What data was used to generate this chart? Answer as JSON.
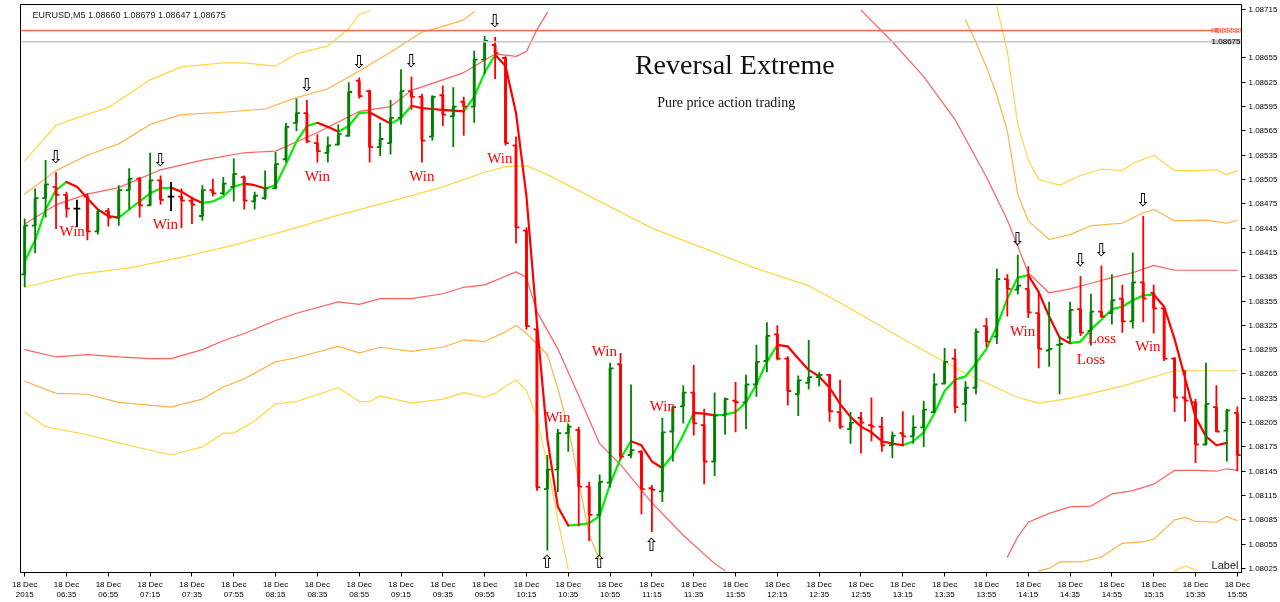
{
  "chart_data": {
    "type": "candlestick",
    "title": "Reversal Extreme",
    "subtitle": "Pure price action trading",
    "x": [
      "2015-12-18T06:15",
      "2015-12-18T06:20",
      "2015-12-18T06:25",
      "2015-12-18T06:30",
      "2015-12-18T06:35",
      "2015-12-18T06:40",
      "2015-12-18T06:45",
      "2015-12-18T06:50",
      "2015-12-18T06:55",
      "2015-12-18T07:00",
      "2015-12-18T07:05",
      "2015-12-18T07:10",
      "2015-12-18T07:15",
      "2015-12-18T07:20",
      "2015-12-18T07:25",
      "2015-12-18T07:30",
      "2015-12-18T07:35",
      "2015-12-18T07:40",
      "2015-12-18T07:45",
      "2015-12-18T07:50",
      "2015-12-18T07:55",
      "2015-12-18T08:00",
      "2015-12-18T08:05",
      "2015-12-18T08:10",
      "2015-12-18T08:15",
      "2015-12-18T08:20",
      "2015-12-18T08:25",
      "2015-12-18T08:30",
      "2015-12-18T08:35",
      "2015-12-18T08:40",
      "2015-12-18T08:45",
      "2015-12-18T08:50",
      "2015-12-18T08:55",
      "2015-12-18T09:00",
      "2015-12-18T09:05",
      "2015-12-18T09:10",
      "2015-12-18T09:15",
      "2015-12-18T09:20",
      "2015-12-18T09:25",
      "2015-12-18T09:30",
      "2015-12-18T09:35",
      "2015-12-18T09:40",
      "2015-12-18T09:45",
      "2015-12-18T09:50",
      "2015-12-18T09:55",
      "2015-12-18T10:00",
      "2015-12-18T10:05",
      "2015-12-18T10:10",
      "2015-12-18T10:15",
      "2015-12-18T10:20",
      "2015-12-18T10:25",
      "2015-12-18T10:30",
      "2015-12-18T10:35",
      "2015-12-18T10:40",
      "2015-12-18T10:45",
      "2015-12-18T10:50",
      "2015-12-18T10:55",
      "2015-12-18T11:00",
      "2015-12-18T11:05",
      "2015-12-18T11:10",
      "2015-12-18T11:15",
      "2015-12-18T11:20",
      "2015-12-18T11:25",
      "2015-12-18T11:30",
      "2015-12-18T11:35",
      "2015-12-18T11:40",
      "2015-12-18T11:45",
      "2015-12-18T11:50",
      "2015-12-18T11:55",
      "2015-12-18T12:00",
      "2015-12-18T12:05",
      "2015-12-18T12:10",
      "2015-12-18T12:15",
      "2015-12-18T12:20",
      "2015-12-18T12:25",
      "2015-12-18T12:30",
      "2015-12-18T12:35",
      "2015-12-18T12:40",
      "2015-12-18T12:45",
      "2015-12-18T12:50",
      "2015-12-18T12:55",
      "2015-12-18T13:00",
      "2015-12-18T13:05",
      "2015-12-18T13:10",
      "2015-12-18T13:15",
      "2015-12-18T13:20",
      "2015-12-18T13:25",
      "2015-12-18T13:30",
      "2015-12-18T13:35",
      "2015-12-18T13:40",
      "2015-12-18T13:45",
      "2015-12-18T13:50",
      "2015-12-18T13:55",
      "2015-12-18T14:00",
      "2015-12-18T14:05",
      "2015-12-18T14:10",
      "2015-12-18T14:15",
      "2015-12-18T14:20",
      "2015-12-18T14:25",
      "2015-12-18T14:30",
      "2015-12-18T14:35",
      "2015-12-18T14:40",
      "2015-12-18T14:45",
      "2015-12-18T14:50",
      "2015-12-18T14:55",
      "2015-12-18T15:00",
      "2015-12-18T15:05",
      "2015-12-18T15:10",
      "2015-12-18T15:15",
      "2015-12-18T15:20",
      "2015-12-18T15:25",
      "2015-12-18T15:30",
      "2015-12-18T15:35",
      "2015-12-18T15:40",
      "2015-12-18T15:45",
      "2015-12-18T15:50",
      "2015-12-18T15:55"
    ],
    "ohlc": [
      [
        1.08388,
        1.08457,
        1.08372,
        1.08448
      ],
      [
        1.08448,
        1.08494,
        1.08414,
        1.08482
      ],
      [
        1.08482,
        1.08529,
        1.08458,
        1.08499
      ],
      [
        1.08496,
        1.08514,
        1.08444,
        1.08486
      ],
      [
        1.08486,
        1.0849,
        1.08458,
        1.08469
      ],
      [
        1.08469,
        1.0848,
        1.08446,
        1.08469
      ],
      [
        1.08484,
        1.08488,
        1.0843,
        1.08441
      ],
      [
        1.08441,
        1.08468,
        1.08437,
        1.08466
      ],
      [
        1.08466,
        1.0847,
        1.08447,
        1.08458
      ],
      [
        1.08458,
        1.08498,
        1.08448,
        1.08492
      ],
      [
        1.08492,
        1.08519,
        1.08468,
        1.08506
      ],
      [
        1.08506,
        1.08508,
        1.08458,
        1.08473
      ],
      [
        1.08473,
        1.08538,
        1.08473,
        1.08504
      ],
      [
        1.08504,
        1.0851,
        1.08474,
        1.0848
      ],
      [
        1.08484,
        1.08502,
        1.08466,
        1.08484
      ],
      [
        1.08484,
        1.08494,
        1.08445,
        1.08479
      ],
      [
        1.08479,
        1.08484,
        1.0845,
        1.08474
      ],
      [
        1.0846,
        1.08498,
        1.08454,
        1.08492
      ],
      [
        1.08492,
        1.08506,
        1.08484,
        1.08488
      ],
      [
        1.08488,
        1.08508,
        1.08486,
        1.085
      ],
      [
        1.08496,
        1.08531,
        1.08478,
        1.08512
      ],
      [
        1.08508,
        1.0851,
        1.08468,
        1.08479
      ],
      [
        1.08478,
        1.0849,
        1.08468,
        1.08485
      ],
      [
        1.08482,
        1.08516,
        1.0848,
        1.08494
      ],
      [
        1.08494,
        1.08539,
        1.08493,
        1.08524
      ],
      [
        1.0853,
        1.08575,
        1.08526,
        1.0857
      ],
      [
        1.08575,
        1.08605,
        1.08565,
        1.08587
      ],
      [
        1.08587,
        1.08603,
        1.0855,
        1.08552
      ],
      [
        1.0855,
        1.08561,
        1.08526,
        1.0854
      ],
      [
        1.08538,
        1.08558,
        1.08526,
        1.08547
      ],
      [
        1.08548,
        1.08573,
        1.08547,
        1.08561
      ],
      [
        1.08559,
        1.08625,
        1.08559,
        1.08613
      ],
      [
        1.08627,
        1.08631,
        1.08605,
        1.08608
      ],
      [
        1.08614,
        1.08616,
        1.08526,
        1.08545
      ],
      [
        1.08545,
        1.08575,
        1.08534,
        1.08555
      ],
      [
        1.0855,
        1.08603,
        1.08536,
        1.08581
      ],
      [
        1.08581,
        1.08641,
        1.08573,
        1.08614
      ],
      [
        1.08614,
        1.08632,
        1.08591,
        1.08607
      ],
      [
        1.08607,
        1.08611,
        1.08526,
        1.08553
      ],
      [
        1.08558,
        1.08609,
        1.08553,
        1.08607
      ],
      [
        1.08609,
        1.08621,
        1.08571,
        1.08585
      ],
      [
        1.08583,
        1.08619,
        1.08545,
        1.08595
      ],
      [
        1.08601,
        1.08607,
        1.08559,
        1.08595
      ],
      [
        1.08595,
        1.08664,
        1.08575,
        1.08653
      ],
      [
        1.08653,
        1.08682,
        1.08635,
        1.08676
      ],
      [
        1.08671,
        1.08681,
        1.08629,
        1.08661
      ],
      [
        1.08655,
        1.08657,
        1.08547,
        1.0855
      ],
      [
        1.08547,
        1.08558,
        1.08426,
        1.08446
      ],
      [
        1.08442,
        1.08446,
        1.0832,
        1.08324
      ],
      [
        1.0832,
        1.08325,
        1.08121,
        1.08125
      ],
      [
        1.08123,
        1.08165,
        1.08047,
        1.08147
      ],
      [
        1.08147,
        1.08197,
        1.08119,
        1.08192
      ],
      [
        1.08192,
        1.08204,
        1.08169,
        1.082
      ],
      [
        1.08196,
        1.082,
        1.08077,
        1.08126
      ],
      [
        1.08126,
        1.08132,
        1.08059,
        1.08091
      ],
      [
        1.08091,
        1.08141,
        1.08041,
        1.08132
      ],
      [
        1.08131,
        1.08279,
        1.08125,
        1.08272
      ],
      [
        1.08277,
        1.08291,
        1.08159,
        1.08163
      ],
      [
        1.08165,
        1.08252,
        1.08161,
        1.08171
      ],
      [
        1.08169,
        1.08171,
        1.08092,
        1.08123
      ],
      [
        1.08124,
        1.08128,
        1.0807,
        1.08122
      ],
      [
        1.0812,
        1.08211,
        1.08107,
        1.08193
      ],
      [
        1.08194,
        1.08225,
        1.08157,
        1.08224
      ],
      [
        1.08225,
        1.08251,
        1.08204,
        1.08242
      ],
      [
        1.08242,
        1.08276,
        1.08189,
        1.08204
      ],
      [
        1.08202,
        1.08222,
        1.08129,
        1.08157
      ],
      [
        1.08157,
        1.08242,
        1.08139,
        1.08214
      ],
      [
        1.08214,
        1.08236,
        1.0819,
        1.08234
      ],
      [
        1.08232,
        1.08255,
        1.08193,
        1.0823
      ],
      [
        1.0823,
        1.08264,
        1.08197,
        1.08252
      ],
      [
        1.08252,
        1.08301,
        1.08237,
        1.0828
      ],
      [
        1.08281,
        1.08329,
        1.08267,
        1.08312
      ],
      [
        1.08314,
        1.08325,
        1.08282,
        1.08284
      ],
      [
        1.08284,
        1.08287,
        1.08226,
        1.08244
      ],
      [
        1.0824,
        1.08263,
        1.08213,
        1.08257
      ],
      [
        1.08254,
        1.08307,
        1.08246,
        1.08261
      ],
      [
        1.08261,
        1.08267,
        1.0825,
        1.08264
      ],
      [
        1.08264,
        1.08264,
        1.08206,
        1.08219
      ],
      [
        1.08218,
        1.08258,
        1.08197,
        1.082
      ],
      [
        1.08197,
        1.08218,
        1.08179,
        1.08205
      ],
      [
        1.08211,
        1.08218,
        1.08167,
        1.08205
      ],
      [
        1.08202,
        1.08236,
        1.08182,
        1.082
      ],
      [
        1.082,
        1.08212,
        1.08169,
        1.08177
      ],
      [
        1.08177,
        1.08194,
        1.08161,
        1.08189
      ],
      [
        1.08192,
        1.08219,
        1.08177,
        1.08188
      ],
      [
        1.08188,
        1.08214,
        1.08179,
        1.08199
      ],
      [
        1.08199,
        1.08232,
        1.08175,
        1.08221
      ],
      [
        1.08218,
        1.08266,
        1.08218,
        1.08252
      ],
      [
        1.08253,
        1.08297,
        1.08253,
        1.0828
      ],
      [
        1.08284,
        1.08296,
        1.08217,
        1.08224
      ],
      [
        1.08228,
        1.08256,
        1.08206,
        1.08248
      ],
      [
        1.08248,
        1.08321,
        1.0824,
        1.08317
      ],
      [
        1.08324,
        1.08334,
        1.08298,
        1.08305
      ],
      [
        1.08311,
        1.08395,
        1.08302,
        1.08382
      ],
      [
        1.08382,
        1.08388,
        1.08336,
        1.0837
      ],
      [
        1.08369,
        1.08412,
        1.08363,
        1.08374
      ],
      [
        1.0837,
        1.08398,
        1.08334,
        1.08341
      ],
      [
        1.0834,
        1.08366,
        1.08272,
        1.08296
      ],
      [
        1.08294,
        1.08354,
        1.08274,
        1.08296
      ],
      [
        1.08301,
        1.08312,
        1.0824,
        1.08302
      ],
      [
        1.0831,
        1.08354,
        1.08304,
        1.08344
      ],
      [
        1.08345,
        1.08386,
        1.08312,
        1.08316
      ],
      [
        1.08318,
        1.08364,
        1.083,
        1.08342
      ],
      [
        1.08342,
        1.08399,
        1.08334,
        1.08336
      ],
      [
        1.0834,
        1.08388,
        1.08326,
        1.08356
      ],
      [
        1.08358,
        1.08375,
        1.08316,
        1.0833
      ],
      [
        1.0833,
        1.08415,
        1.08321,
        1.08378
      ],
      [
        1.08378,
        1.0846,
        1.08329,
        1.08358
      ],
      [
        1.08365,
        1.08375,
        1.08315,
        1.08346
      ],
      [
        1.08346,
        1.08348,
        1.08281,
        1.08284
      ],
      [
        1.08284,
        1.08286,
        1.08218,
        1.08236
      ],
      [
        1.08236,
        1.0827,
        1.08206,
        1.08232
      ],
      [
        1.0823,
        1.08234,
        1.08155,
        1.08178
      ],
      [
        1.08178,
        1.08279,
        1.08177,
        1.08228
      ],
      [
        1.08224,
        1.08251,
        1.08193,
        1.08194
      ],
      [
        1.08195,
        1.08222,
        1.08157,
        1.0822
      ],
      [
        1.08217,
        1.08225,
        1.08145,
        1.08165
      ]
    ],
    "colors": [
      "#008000",
      "#008000",
      "#008000",
      "#ff0000",
      "#ff0000",
      "#000000",
      "#ff0000",
      "#008000",
      "#ff0000",
      "#008000",
      "#008000",
      "#ff0000",
      "#008000",
      "#ff0000",
      "#000000",
      "#ff0000",
      "#ff0000",
      "#008000",
      "#ff0000",
      "#008000",
      "#008000",
      "#ff0000",
      "#008000",
      "#008000",
      "#008000",
      "#008000",
      "#008000",
      "#ff0000",
      "#ff0000",
      "#008000",
      "#008000",
      "#008000",
      "#ff0000",
      "#ff0000",
      "#008000",
      "#008000",
      "#008000",
      "#ff0000",
      "#ff0000",
      "#008000",
      "#ff0000",
      "#008000",
      "#ff0000",
      "#008000",
      "#008000",
      "#ff0000",
      "#ff0000",
      "#ff0000",
      "#ff0000",
      "#ff0000",
      "#008000",
      "#008000",
      "#008000",
      "#ff0000",
      "#ff0000",
      "#008000",
      "#008000",
      "#ff0000",
      "#008000",
      "#ff0000",
      "#ff0000",
      "#008000",
      "#008000",
      "#008000",
      "#ff0000",
      "#ff0000",
      "#008000",
      "#008000",
      "#ff0000",
      "#008000",
      "#008000",
      "#008000",
      "#ff0000",
      "#ff0000",
      "#008000",
      "#008000",
      "#008000",
      "#ff0000",
      "#ff0000",
      "#008000",
      "#ff0000",
      "#ff0000",
      "#ff0000",
      "#008000",
      "#ff0000",
      "#008000",
      "#008000",
      "#008000",
      "#008000",
      "#ff0000",
      "#008000",
      "#008000",
      "#ff0000",
      "#008000",
      "#ff0000",
      "#008000",
      "#ff0000",
      "#ff0000",
      "#008000",
      "#008000",
      "#008000",
      "#ff0000",
      "#008000",
      "#ff0000",
      "#008000",
      "#ff0000",
      "#008000",
      "#ff0000",
      "#ff0000",
      "#ff0000",
      "#ff0000",
      "#ff0000",
      "#ff0000",
      "#008000",
      "#ff0000",
      "#008000",
      "#ff0000"
    ],
    "series": [
      {
        "type": "line",
        "color": "#ffd740",
        "x": [
          "2015-12-18T06:15",
          "2015-12-18T06:30",
          "2015-12-18T06:40",
          "2015-12-18T06:55",
          "2015-12-18T07:15",
          "2015-12-18T07:30",
          "2015-12-18T07:50",
          "2015-12-18T08:00",
          "2015-12-18T08:15",
          "2015-12-18T08:25",
          "2015-12-18T08:40",
          "2015-12-18T08:50",
          "2015-12-18T08:55",
          "2015-12-18T09:00",
          "2015-12-18T11:40",
          "2015-12-18T14:00",
          "2015-12-18T14:05",
          "2015-12-18T14:10",
          "2015-12-18T14:15",
          "2015-12-18T14:20",
          "2015-12-18T14:30",
          "2015-12-18T14:40",
          "2015-12-18T14:50",
          "2015-12-18T15:00",
          "2015-12-18T15:05",
          "2015-12-18T15:15",
          "2015-12-18T15:25",
          "2015-12-18T15:35",
          "2015-12-18T15:45",
          "2015-12-18T15:50",
          "2015-12-18T15:55"
        ],
        "values": [
          1.08528,
          1.08572,
          1.08581,
          1.08594,
          1.08628,
          1.08644,
          1.08649,
          1.08649,
          1.08645,
          1.0866,
          1.0867,
          1.08691,
          1.08709,
          1.08713,
          null,
          1.08718,
          1.08663,
          1.08573,
          1.08529,
          1.08505,
          1.08498,
          1.0851,
          1.08518,
          1.08516,
          1.08525,
          1.08535,
          1.08516,
          1.08516,
          1.08517,
          1.08511,
          1.08516
        ]
      },
      {
        "type": "line",
        "color": "#ffb347",
        "x": [
          "2015-12-18T06:15",
          "2015-12-18T06:30",
          "2015-12-18T06:45",
          "2015-12-18T07:00",
          "2015-12-18T07:15",
          "2015-12-18T07:30",
          "2015-12-18T07:50",
          "2015-12-18T08:10",
          "2015-12-18T08:25",
          "2015-12-18T08:40",
          "2015-12-18T08:55",
          "2015-12-18T09:10",
          "2015-12-18T09:25",
          "2015-12-18T09:35",
          "2015-12-18T09:45",
          "2015-12-18T09:50",
          "2015-12-18T11:40",
          "2015-12-18T13:45",
          "2015-12-18T13:50",
          "2015-12-18T13:55",
          "2015-12-18T14:00",
          "2015-12-18T14:05",
          "2015-12-18T14:10",
          "2015-12-18T14:15",
          "2015-12-18T14:25",
          "2015-12-18T14:35",
          "2015-12-18T14:45",
          "2015-12-18T15:00",
          "2015-12-18T15:10",
          "2015-12-18T15:15",
          "2015-12-18T15:25",
          "2015-12-18T15:40",
          "2015-12-18T15:50",
          "2015-12-18T15:55"
        ],
        "values": [
          1.08487,
          1.08516,
          1.08535,
          1.08549,
          1.08573,
          1.08585,
          1.08588,
          1.08592,
          1.08606,
          1.08617,
          1.08639,
          1.08662,
          1.08687,
          1.08694,
          1.08702,
          1.08712,
          null,
          1.08702,
          1.08674,
          1.08644,
          1.08609,
          1.08565,
          1.08487,
          1.08454,
          1.08431,
          1.08437,
          1.08448,
          1.08451,
          1.08464,
          1.08468,
          1.08454,
          1.08455,
          1.08451,
          1.08455
        ]
      },
      {
        "type": "line",
        "color": "#ff6060",
        "x": [
          "2015-12-18T06:15",
          "2015-12-18T06:30",
          "2015-12-18T06:45",
          "2015-12-18T07:00",
          "2015-12-18T07:20",
          "2015-12-18T07:40",
          "2015-12-18T08:00",
          "2015-12-18T08:15",
          "2015-12-18T08:35",
          "2015-12-18T08:55",
          "2015-12-18T09:10",
          "2015-12-18T09:20",
          "2015-12-18T09:35",
          "2015-12-18T09:45",
          "2015-12-18T10:00",
          "2015-12-18T10:10",
          "2015-12-18T10:15",
          "2015-12-18T10:20",
          "2015-12-18T10:25",
          "2015-12-18T11:40",
          "2015-12-18T12:55",
          "2015-12-18T13:10",
          "2015-12-18T13:25",
          "2015-12-18T13:40",
          "2015-12-18T13:55",
          "2015-12-18T14:05",
          "2015-12-18T14:15",
          "2015-12-18T14:25",
          "2015-12-18T14:35",
          "2015-12-18T14:45",
          "2015-12-18T14:55",
          "2015-12-18T15:05",
          "2015-12-18T15:15",
          "2015-12-18T15:25",
          "2015-12-18T15:40",
          "2015-12-18T15:55"
        ],
        "values": [
          1.0845,
          1.08474,
          1.08487,
          1.08495,
          1.08517,
          1.08529,
          1.08538,
          1.0854,
          1.08563,
          1.08589,
          1.08595,
          1.08615,
          1.08628,
          1.08637,
          1.0866,
          1.08657,
          1.08663,
          1.0869,
          1.08711,
          null,
          1.08714,
          1.08675,
          1.08632,
          1.08579,
          1.08508,
          1.08455,
          1.0839,
          1.08365,
          1.0837,
          1.08377,
          1.08384,
          1.0839,
          1.08399,
          1.08393,
          1.08393,
          1.08393
        ]
      },
      {
        "type": "line",
        "color": "#ffd740",
        "x": [
          "2015-12-18T06:15",
          "2015-12-18T06:40",
          "2015-12-18T07:05",
          "2015-12-18T07:30",
          "2015-12-18T07:55",
          "2015-12-18T08:20",
          "2015-12-18T08:45",
          "2015-12-18T09:10",
          "2015-12-18T09:35",
          "2015-12-18T09:55",
          "2015-12-18T10:05",
          "2015-12-18T10:15",
          "2015-12-18T10:25",
          "2015-12-18T10:50",
          "2015-12-18T11:15",
          "2015-12-18T11:40",
          "2015-12-18T12:05",
          "2015-12-18T12:30",
          "2015-12-18T12:45",
          "2015-12-18T12:55",
          "2015-12-18T13:20",
          "2015-12-18T13:45",
          "2015-12-18T14:10",
          "2015-12-18T14:20",
          "2015-12-18T14:35",
          "2015-12-18T15:00",
          "2015-12-18T15:25",
          "2015-12-18T15:55"
        ],
        "values": [
          1.08372,
          1.08388,
          1.08396,
          1.08409,
          1.08424,
          1.08442,
          1.08461,
          1.08478,
          1.08496,
          1.08514,
          1.08521,
          1.08522,
          1.08511,
          1.08478,
          1.08445,
          1.0842,
          1.08395,
          1.08374,
          1.08353,
          1.08338,
          1.08301,
          1.08266,
          1.08236,
          1.08229,
          1.08235,
          1.0825,
          1.08269,
          1.08269
        ]
      },
      {
        "type": "line",
        "color": "#ff6060",
        "x": [
          "2015-12-18T06:15",
          "2015-12-18T06:30",
          "2015-12-18T06:45",
          "2015-12-18T07:00",
          "2015-12-18T07:15",
          "2015-12-18T07:25",
          "2015-12-18T07:40",
          "2015-12-18T07:50",
          "2015-12-18T08:00",
          "2015-12-18T08:15",
          "2015-12-18T08:25",
          "2015-12-18T08:45",
          "2015-12-18T08:55",
          "2015-12-18T09:05",
          "2015-12-18T09:20",
          "2015-12-18T09:35",
          "2015-12-18T09:45",
          "2015-12-18T09:55",
          "2015-12-18T10:10",
          "2015-12-18T10:15",
          "2015-12-18T10:20",
          "2015-12-18T10:30",
          "2015-12-18T10:40",
          "2015-12-18T10:50",
          "2015-12-18T11:00",
          "2015-12-18T11:15",
          "2015-12-18T11:30",
          "2015-12-18T11:45",
          "2015-12-18T11:50",
          "2015-12-18T12:55",
          "2015-12-18T14:05",
          "2015-12-18T14:10",
          "2015-12-18T14:15",
          "2015-12-18T14:25",
          "2015-12-18T14:35",
          "2015-12-18T14:45",
          "2015-12-18T14:55",
          "2015-12-18T15:05",
          "2015-12-18T15:15",
          "2015-12-18T15:25",
          "2015-12-18T15:35",
          "2015-12-18T15:45",
          "2015-12-18T15:50",
          "2015-12-18T15:55"
        ],
        "values": [
          1.08295,
          1.08286,
          1.08289,
          1.08286,
          1.08284,
          1.08284,
          1.08295,
          1.08306,
          1.08315,
          1.08331,
          1.0834,
          1.08354,
          1.08351,
          1.08358,
          1.08358,
          1.08364,
          1.08372,
          1.08375,
          1.08391,
          1.08384,
          1.08342,
          1.08296,
          1.08238,
          1.08179,
          1.08153,
          1.08106,
          1.08066,
          1.08031,
          1.08022,
          null,
          1.08039,
          1.08064,
          1.08082,
          1.08093,
          1.08101,
          1.08102,
          1.08117,
          1.08121,
          1.08129,
          1.08146,
          1.08146,
          1.08145,
          1.08148,
          1.08146
        ]
      },
      {
        "type": "line",
        "color": "#ffb347",
        "x": [
          "2015-12-18T06:15",
          "2015-12-18T06:30",
          "2015-12-18T06:45",
          "2015-12-18T07:00",
          "2015-12-18T07:25",
          "2015-12-18T07:40",
          "2015-12-18T07:50",
          "2015-12-18T08:00",
          "2015-12-18T08:15",
          "2015-12-18T08:25",
          "2015-12-18T08:45",
          "2015-12-18T08:55",
          "2015-12-18T09:05",
          "2015-12-18T09:20",
          "2015-12-18T09:35",
          "2015-12-18T09:45",
          "2015-12-18T09:55",
          "2015-12-18T10:05",
          "2015-12-18T10:10",
          "2015-12-18T10:15",
          "2015-12-18T10:25",
          "2015-12-18T10:30",
          "2015-12-18T10:35",
          "2015-12-18T10:45",
          "2015-12-18T10:50",
          "2015-12-18T12:55",
          "2015-12-18T14:20",
          "2015-12-18T14:25",
          "2015-12-18T14:30",
          "2015-12-18T14:40",
          "2015-12-18T14:50",
          "2015-12-18T15:00",
          "2015-12-18T15:10",
          "2015-12-18T15:15",
          "2015-12-18T15:25",
          "2015-12-18T15:30",
          "2015-12-18T15:35",
          "2015-12-18T15:45",
          "2015-12-18T15:50",
          "2015-12-18T15:55"
        ],
        "values": [
          1.08256,
          1.08241,
          1.0824,
          1.0823,
          1.08224,
          1.08234,
          1.08249,
          1.08259,
          1.0828,
          1.08285,
          1.08299,
          1.08291,
          1.08298,
          1.08293,
          1.08298,
          1.08307,
          1.08305,
          1.08317,
          1.08325,
          1.08315,
          1.08289,
          1.08247,
          1.08199,
          1.08066,
          1.08036,
          null,
          1.08022,
          1.08025,
          1.08033,
          1.08033,
          1.08039,
          1.08056,
          1.08058,
          1.08061,
          1.08085,
          1.08088,
          1.08083,
          1.08082,
          1.08089,
          1.08084
        ]
      },
      {
        "type": "line",
        "color": "#ffd740",
        "x": [
          "2015-12-18T06:15",
          "2015-12-18T06:25",
          "2015-12-18T06:45",
          "2015-12-18T07:00",
          "2015-12-18T07:10",
          "2015-12-18T07:25",
          "2015-12-18T07:40",
          "2015-12-18T07:50",
          "2015-12-18T07:55",
          "2015-12-18T08:05",
          "2015-12-18T08:15",
          "2015-12-18T08:25",
          "2015-12-18T08:45",
          "2015-12-18T08:55",
          "2015-12-18T09:00",
          "2015-12-18T09:05",
          "2015-12-18T09:20",
          "2015-12-18T09:35",
          "2015-12-18T09:45",
          "2015-12-18T09:55",
          "2015-12-18T10:00",
          "2015-12-18T10:10",
          "2015-12-18T10:15",
          "2015-12-18T10:20",
          "2015-12-18T10:25",
          "2015-12-18T10:30",
          "2015-12-18T10:35",
          "2015-12-18T12:55",
          "2015-12-18T15:25",
          "2015-12-18T15:30",
          "2015-12-18T15:35"
        ],
        "values": [
          1.08218,
          1.082,
          1.0819,
          1.0818,
          1.08174,
          1.08165,
          1.08175,
          1.08192,
          1.08192,
          1.08207,
          1.08228,
          1.08231,
          1.08248,
          1.08231,
          1.08231,
          1.08238,
          1.08229,
          1.08234,
          1.08242,
          1.08236,
          1.08241,
          1.08258,
          1.08244,
          1.08212,
          1.08153,
          1.08085,
          1.08024,
          null,
          1.08022,
          1.08028,
          1.08023
        ]
      },
      {
        "type": "line",
        "color": "#00ee00",
        "values": [
          1.08404,
          1.0843,
          1.08468,
          1.08492,
          1.08502,
          null,
          null,
          null,
          null,
          1.08458,
          1.08468,
          1.08478,
          1.08488,
          1.08494,
          1.08495,
          null,
          null,
          1.08476,
          1.08478,
          1.08484,
          1.08496,
          1.085,
          null,
          1.08494,
          1.08498,
          1.08524,
          1.08552,
          1.08571,
          1.08575,
          null,
          1.08564,
          1.08571,
          1.08587,
          1.08588,
          null,
          1.08574,
          1.08581,
          1.08596,
          null,
          null,
          null,
          null,
          1.08589,
          1.08607,
          1.08637,
          1.08659,
          null,
          null,
          null,
          null,
          null,
          null,
          1.08078,
          1.08079,
          1.08081,
          1.0809,
          1.08129,
          1.08161,
          1.08182,
          null,
          null,
          1.08149,
          1.08165,
          1.0819,
          1.08217,
          null,
          1.08214,
          1.08215,
          1.08218,
          1.0823,
          1.08252,
          1.0828,
          1.08301,
          null,
          null,
          null,
          null,
          null,
          null,
          null,
          null,
          null,
          null,
          null,
          1.08177,
          1.08182,
          1.08193,
          1.08216,
          1.08244,
          1.08258,
          1.08262,
          1.08278,
          1.08296,
          1.08324,
          1.08358,
          1.08384,
          1.08387,
          null,
          null,
          null,
          1.08303,
          1.08305,
          1.0832,
          1.08332,
          1.08345,
          1.08348,
          1.08356,
          1.08362,
          1.08363,
          null,
          null,
          null,
          null,
          null,
          null,
          null,
          null
        ]
      },
      {
        "type": "line",
        "color": "#ff0000",
        "values": [
          null,
          null,
          null,
          null,
          1.08502,
          1.08496,
          1.08482,
          1.08468,
          1.0846,
          1.08458,
          null,
          null,
          null,
          null,
          1.08495,
          1.0849,
          1.08482,
          1.08476,
          null,
          null,
          null,
          1.085,
          1.08498,
          1.08494,
          null,
          null,
          null,
          null,
          1.08575,
          1.0857,
          1.08564,
          null,
          null,
          1.08588,
          1.08581,
          1.08574,
          null,
          1.08596,
          1.08593,
          1.08592,
          1.08591,
          1.0859,
          1.08589,
          null,
          null,
          1.08659,
          1.08645,
          1.08587,
          1.08484,
          1.08328,
          1.08185,
          1.08101,
          1.08078,
          null,
          null,
          null,
          null,
          null,
          1.08182,
          1.08177,
          1.08157,
          1.08149,
          null,
          null,
          1.08217,
          1.08216,
          1.08214,
          null,
          null,
          null,
          null,
          null,
          1.08301,
          1.08299,
          1.08284,
          1.0827,
          1.08262,
          1.08248,
          1.08228,
          1.08212,
          1.082,
          1.08193,
          1.08182,
          1.08179,
          1.08177,
          null,
          null,
          null,
          null,
          null,
          null,
          null,
          null,
          null,
          null,
          null,
          1.08387,
          1.08366,
          1.08336,
          1.0831,
          1.08303,
          null,
          null,
          null,
          null,
          null,
          null,
          null,
          1.08363,
          1.08348,
          1.08308,
          1.0826,
          1.08212,
          1.08188,
          1.08177,
          1.0818,
          null
        ]
      }
    ],
    "xlim": [
      "2015-12-18T06:13",
      "2015-12-18T15:57"
    ],
    "ylim": [
      1.0802,
      1.08721
    ],
    "xticks": [
      {
        "value": "2015-12-18T06:15",
        "label": "18 Dec 2015"
      },
      {
        "value": "2015-12-18T06:35",
        "label": "18 Dec 06:35"
      },
      {
        "value": "2015-12-18T06:55",
        "label": "18 Dec 06:55"
      },
      {
        "value": "2015-12-18T07:15",
        "label": "18 Dec 07:15"
      },
      {
        "value": "2015-12-18T07:35",
        "label": "18 Dec 07:35"
      },
      {
        "value": "2015-12-18T07:55",
        "label": "18 Dec 07:55"
      },
      {
        "value": "2015-12-18T08:15",
        "label": "18 Dec 08:15"
      },
      {
        "value": "2015-12-18T08:35",
        "label": "18 Dec 08:35"
      },
      {
        "value": "2015-12-18T08:55",
        "label": "18 Dec 08:55"
      },
      {
        "value": "2015-12-18T09:15",
        "label": "18 Dec 09:15"
      },
      {
        "value": "2015-12-18T09:35",
        "label": "18 Dec 09:35"
      },
      {
        "value": "2015-12-18T09:55",
        "label": "18 Dec 09:55"
      },
      {
        "value": "2015-12-18T10:15",
        "label": "18 Dec 10:15"
      },
      {
        "value": "2015-12-18T10:35",
        "label": "18 Dec 10:35"
      },
      {
        "value": "2015-12-18T10:55",
        "label": "18 Dec 10:55"
      },
      {
        "value": "2015-12-18T11:15",
        "label": "18 Dec 11:15"
      },
      {
        "value": "2015-12-18T11:35",
        "label": "18 Dec 11:35"
      },
      {
        "value": "2015-12-18T11:55",
        "label": "18 Dec 11:55"
      },
      {
        "value": "2015-12-18T12:15",
        "label": "18 Dec 12:15"
      },
      {
        "value": "2015-12-18T12:35",
        "label": "18 Dec 12:35"
      },
      {
        "value": "2015-12-18T12:55",
        "label": "18 Dec 12:55"
      },
      {
        "value": "2015-12-18T13:15",
        "label": "18 Dec 13:15"
      },
      {
        "value": "2015-12-18T13:35",
        "label": "18 Dec 13:35"
      },
      {
        "value": "2015-12-18T13:55",
        "label": "18 Dec 13:55"
      },
      {
        "value": "2015-12-18T14:15",
        "label": "18 Dec 14:15"
      },
      {
        "value": "2015-12-18T14:35",
        "label": "18 Dec 14:35"
      },
      {
        "value": "2015-12-18T14:55",
        "label": "18 Dec 14:55"
      },
      {
        "value": "2015-12-18T15:15",
        "label": "18 Dec 15:15"
      },
      {
        "value": "2015-12-18T15:35",
        "label": "18 Dec 15:35"
      },
      {
        "value": "2015-12-18T15:55",
        "label": "18 Dec 15:55"
      }
    ],
    "yticks": [
      1.08025,
      1.08055,
      1.08085,
      1.08115,
      1.08145,
      1.08175,
      1.08205,
      1.08235,
      1.08265,
      1.08295,
      1.08325,
      1.08355,
      1.08385,
      1.08415,
      1.08445,
      1.08475,
      1.08505,
      1.08535,
      1.08565,
      1.08595,
      1.08625,
      1.08655,
      1.08715
    ],
    "ref_lines": [
      {
        "axis": "y",
        "value": 1.08689,
        "label": "1.08689",
        "color": "#ff6a4d"
      },
      {
        "axis": "y",
        "value": 1.08675,
        "label": "1.08675",
        "color": "#c8c8c8"
      }
    ],
    "annotations": [
      "EURUSD,M5 1.08660 1.08679 1.08647 1.08675",
      {
        "text": "⇩",
        "x": "2015-12-18T06:30",
        "y": 1.08514
      },
      {
        "text": "⇩",
        "x": "2015-12-18T07:20",
        "y": 1.0851
      },
      {
        "text": "⇩",
        "x": "2015-12-18T08:30",
        "y": 1.08603
      },
      {
        "text": "⇩",
        "x": "2015-12-18T08:55",
        "y": 1.08631
      },
      {
        "text": "⇩",
        "x": "2015-12-18T09:20",
        "y": 1.08632
      },
      {
        "text": "⇩",
        "x": "2015-12-18T10:00",
        "y": 1.08681
      },
      {
        "text": "⇩",
        "x": "2015-12-18T14:10",
        "y": 1.08412
      },
      {
        "text": "⇩",
        "x": "2015-12-18T14:40",
        "y": 1.08386
      },
      {
        "text": "⇩",
        "x": "2015-12-18T14:50",
        "y": 1.08399
      },
      {
        "text": "⇩",
        "x": "2015-12-18T15:10",
        "y": 1.0846
      },
      {
        "text": "⇧",
        "x": "2015-12-18T10:25",
        "y": 1.08047
      },
      {
        "text": "⇧",
        "x": "2015-12-18T10:50",
        "y": 1.08041
      },
      {
        "text": "⇧",
        "x": "2015-12-18T11:15",
        "y": 1.0807
      },
      {
        "text": "Win",
        "x": "2015-12-18T06:35",
        "y": 1.08458
      },
      {
        "text": "Win",
        "x": "2015-12-18T07:25",
        "y": 1.08466
      },
      {
        "text": "Win",
        "x": "2015-12-18T08:35",
        "y": 1.08526
      },
      {
        "text": "Win",
        "x": "2015-12-18T09:25",
        "y": 1.08526
      },
      {
        "text": "Win",
        "x": "2015-12-18T10:05",
        "y": 1.08547
      },
      {
        "text": "Win",
        "x": "2015-12-18T10:55",
        "y": 1.08279
      },
      {
        "text": "Win",
        "x": "2015-12-18T10:30",
        "y": 1.08197
      },
      {
        "text": "Win",
        "x": "2015-12-18T11:20",
        "y": 1.08211
      },
      {
        "text": "Win",
        "x": "2015-12-18T14:15",
        "y": 1.08334
      },
      {
        "text": "Loss",
        "x": "2015-12-18T14:45",
        "y": 1.083
      },
      {
        "text": "Loss",
        "x": "2015-12-18T14:55",
        "y": 1.08326
      },
      {
        "text": "Win",
        "x": "2015-12-18T15:15",
        "y": 1.08315
      },
      "Label"
    ]
  }
}
